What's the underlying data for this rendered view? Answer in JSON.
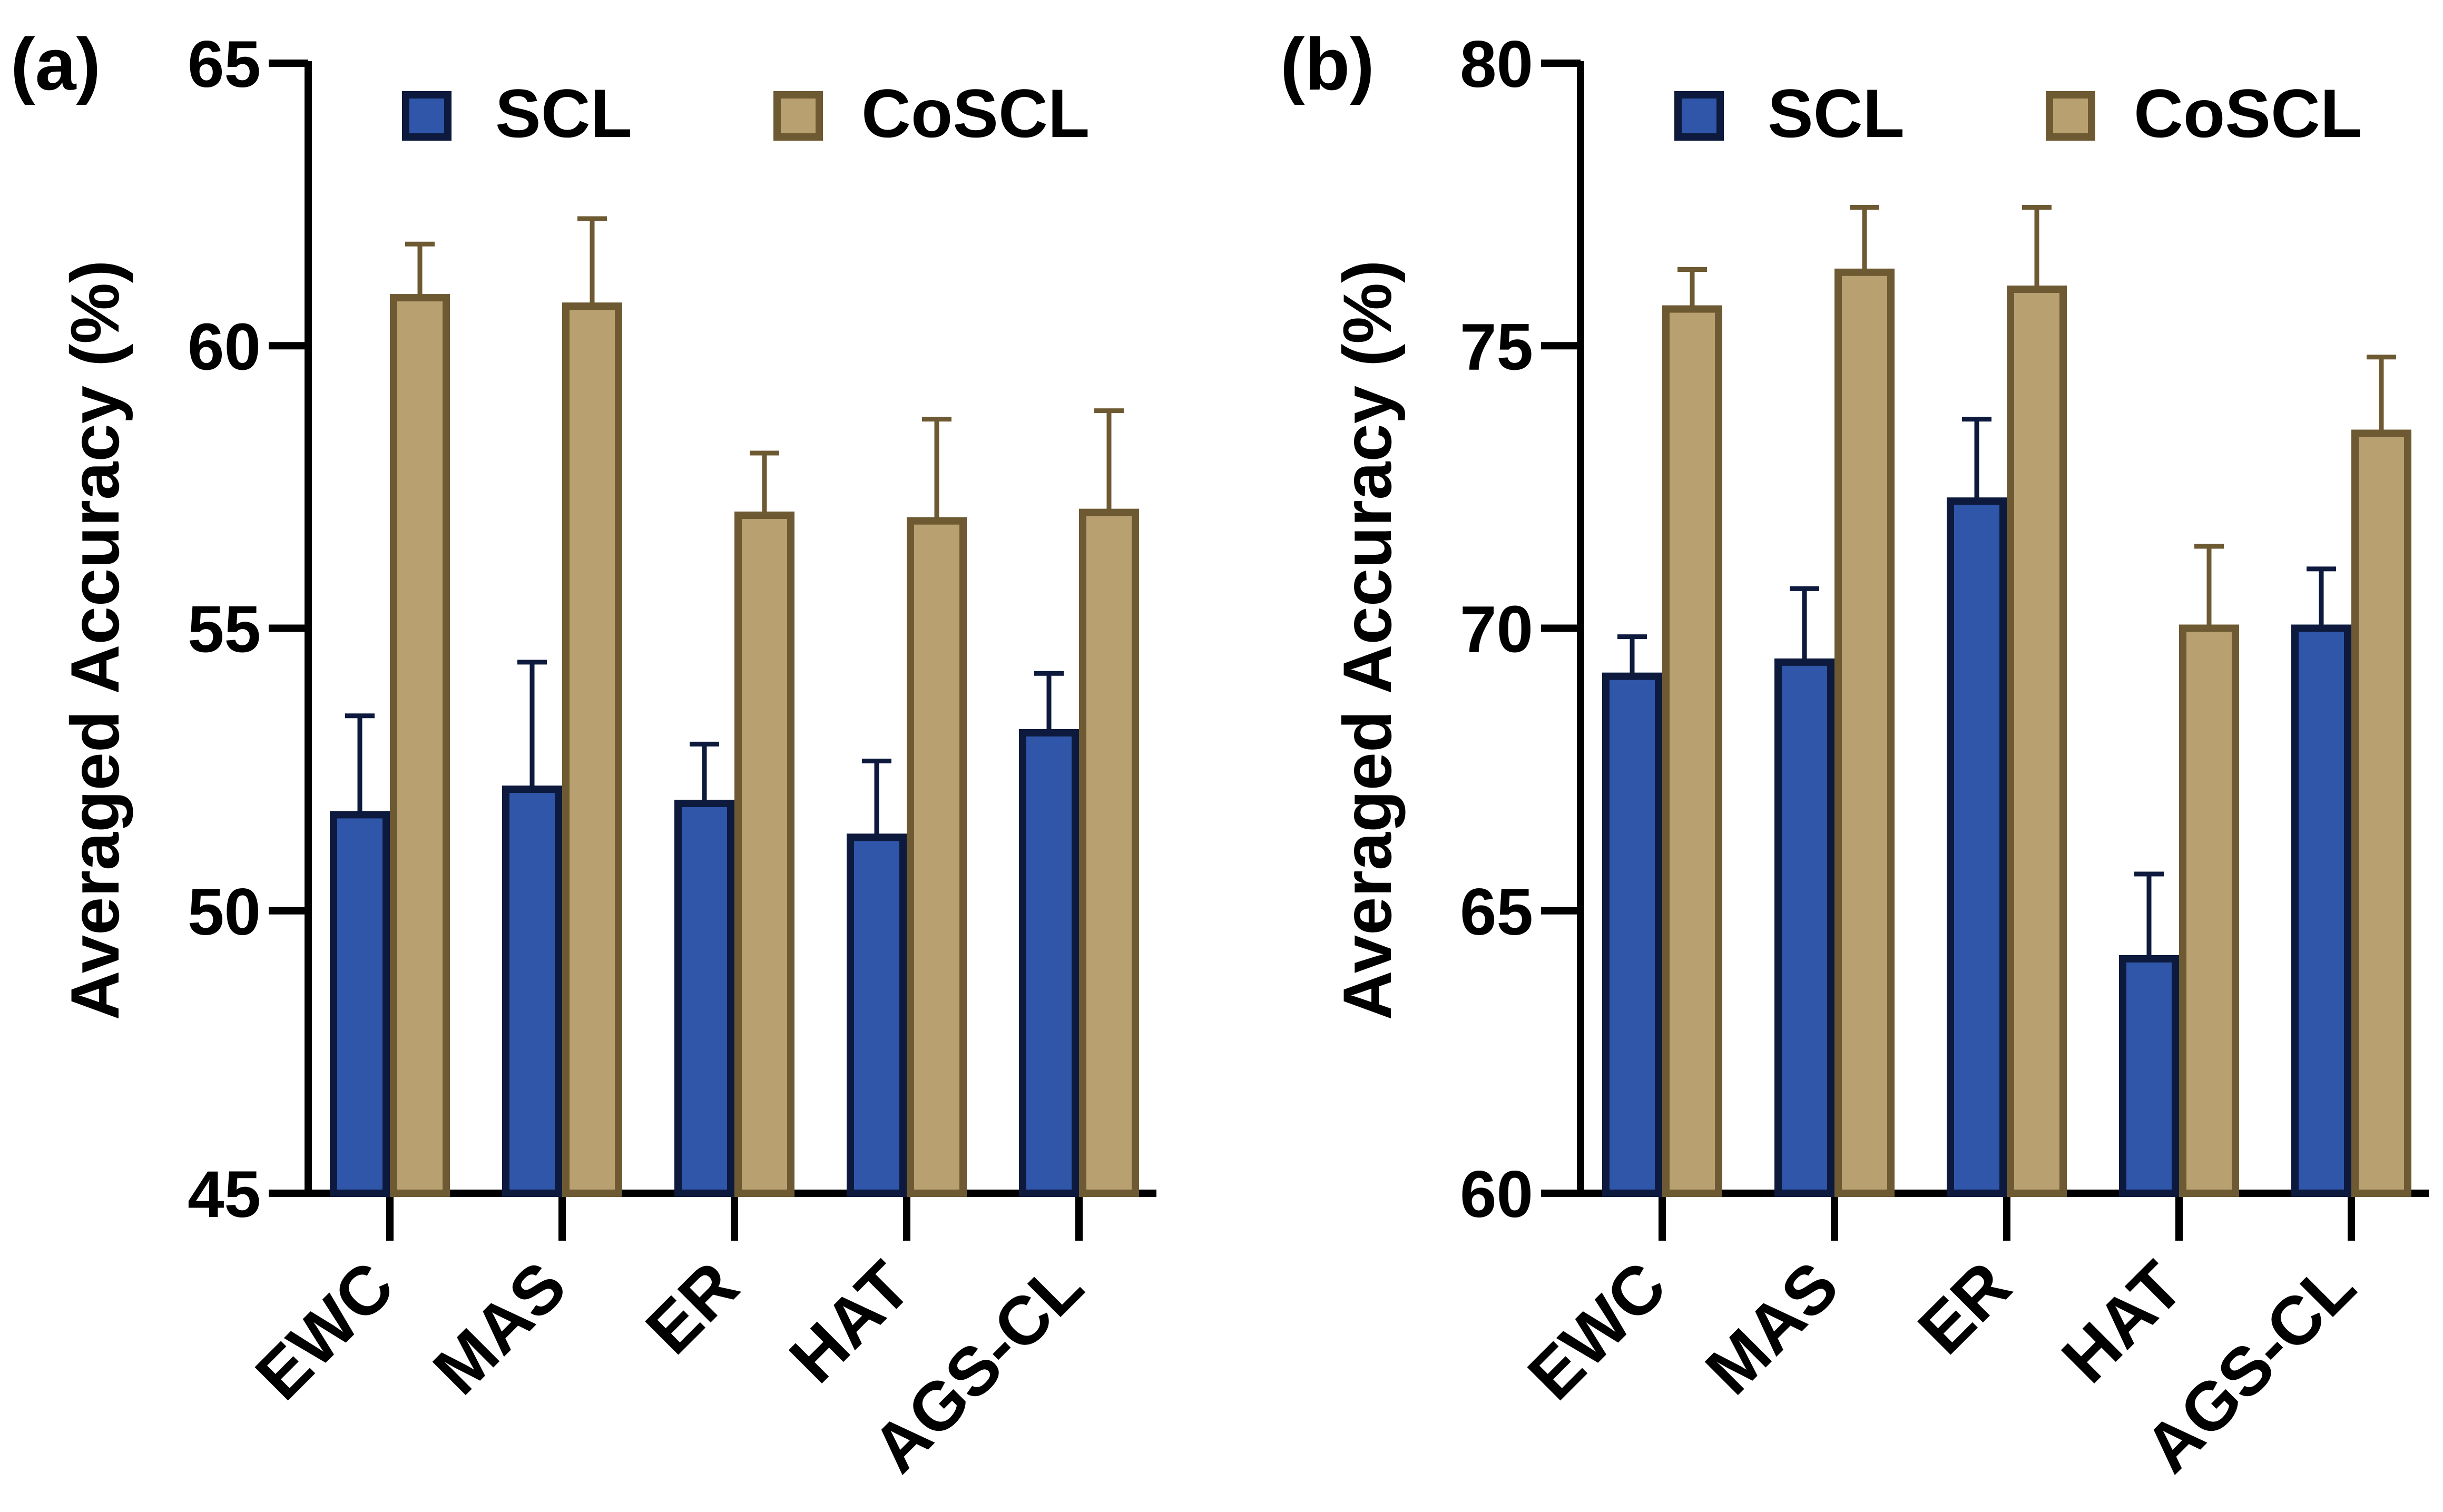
{
  "colors": {
    "scl_fill": "#2f56a8",
    "scl_stroke": "#0d1a3d",
    "coscl_fill": "#b8a070",
    "coscl_stroke": "#6e5a32",
    "axis": "#000000"
  },
  "chart_data": [
    {
      "type": "bar",
      "panel_label": "(a)",
      "title": "",
      "xlabel": "",
      "ylabel": "Averaged Accuracy (%)",
      "ylim": [
        45,
        65
      ],
      "yticks": [
        "45",
        "50",
        "55",
        "60",
        "65"
      ],
      "categories": [
        "EWC",
        "MAS",
        "ER",
        "HAT",
        "AGS-CL"
      ],
      "legend": "top",
      "series": [
        {
          "name": "SCL",
          "values": [
            51.7,
            52.15,
            51.9,
            51.3,
            53.15
          ],
          "errors": [
            1.75,
            2.25,
            1.05,
            1.35,
            1.05
          ]
        },
        {
          "name": "CoSCL",
          "values": [
            60.85,
            60.7,
            57.0,
            56.9,
            57.05
          ],
          "errors": [
            0.95,
            1.55,
            1.1,
            1.8,
            1.8
          ]
        }
      ]
    },
    {
      "type": "bar",
      "panel_label": "(b)",
      "title": "",
      "xlabel": "",
      "ylabel": "Averaged Accuracy (%)",
      "ylim": [
        60,
        80
      ],
      "yticks": [
        "60",
        "65",
        "70",
        "75",
        "80"
      ],
      "categories": [
        "EWC",
        "MAS",
        "ER",
        "HAT",
        "AGS-CL"
      ],
      "legend": "top",
      "series": [
        {
          "name": "SCL",
          "values": [
            69.15,
            69.4,
            72.25,
            64.15,
            70.0
          ],
          "errors": [
            0.7,
            1.3,
            1.45,
            1.5,
            1.05
          ]
        },
        {
          "name": "CoSCL",
          "values": [
            75.65,
            76.3,
            76.0,
            70.0,
            73.45
          ],
          "errors": [
            0.7,
            1.15,
            1.45,
            1.45,
            1.35
          ]
        }
      ]
    }
  ]
}
